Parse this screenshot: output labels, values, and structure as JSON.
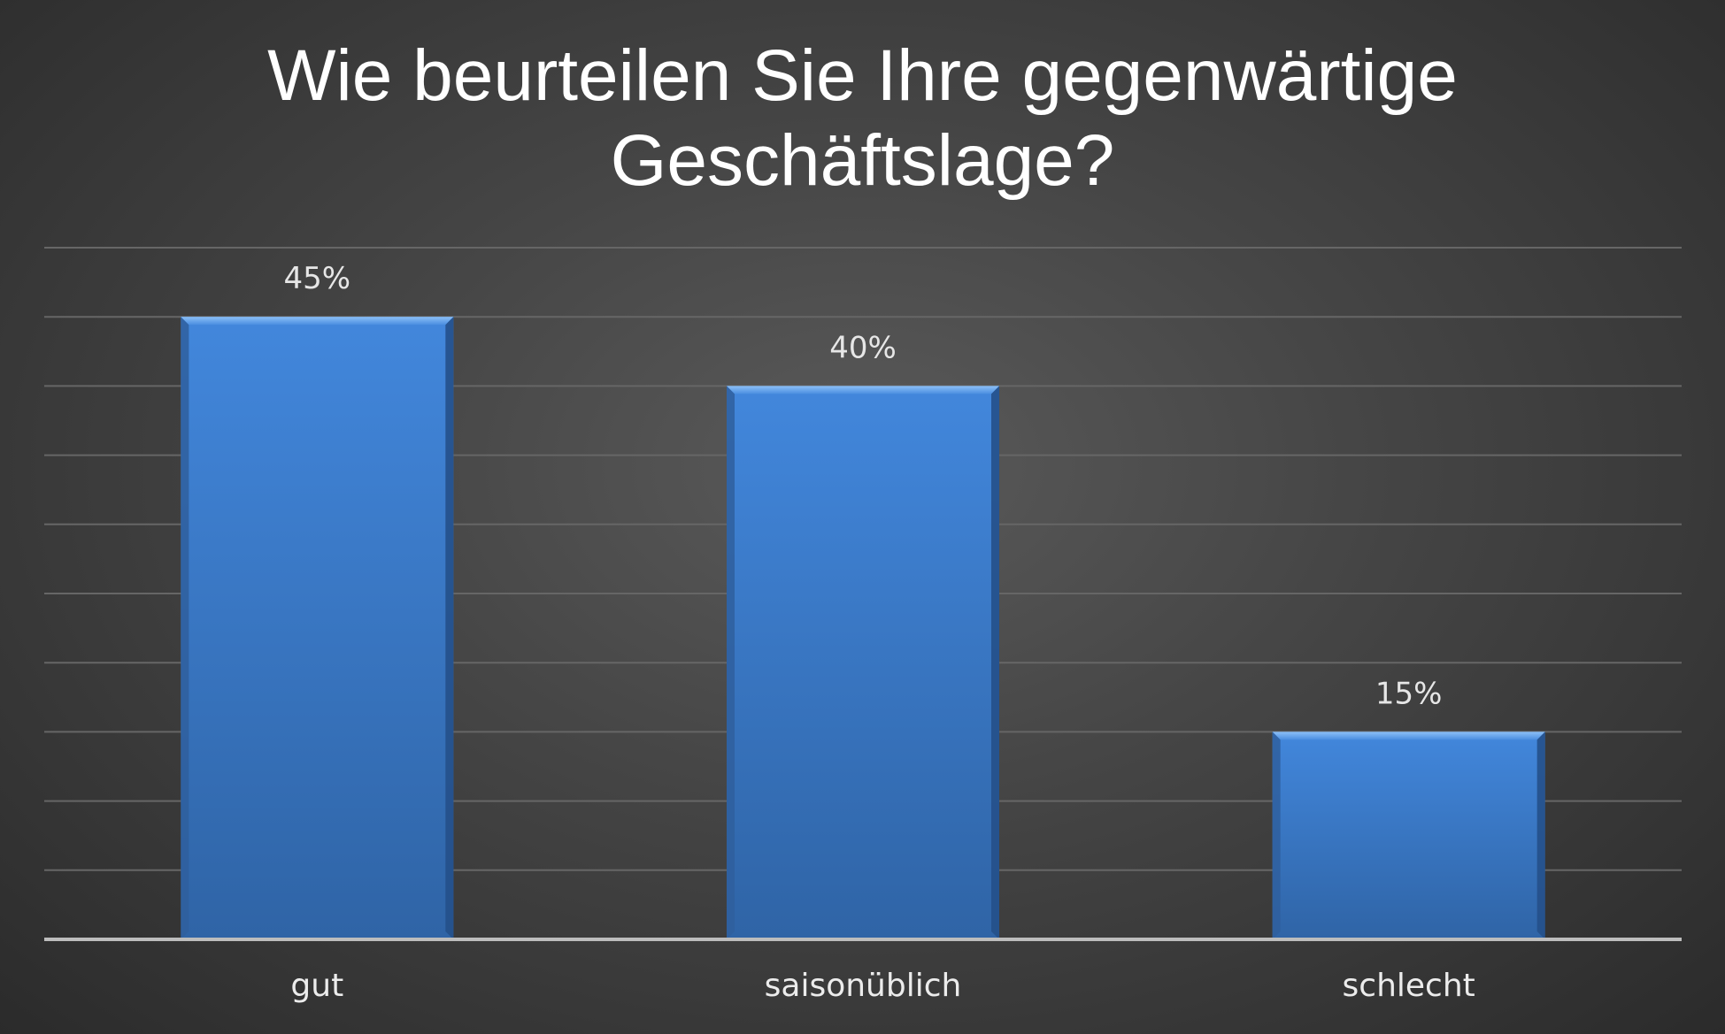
{
  "chart_data": {
    "type": "bar",
    "title_lines": [
      "Wie beurteilen Sie Ihre gegenwärtige",
      "Geschäftslage?"
    ],
    "categories": [
      "gut",
      "saisonüblich",
      "schlecht"
    ],
    "values": [
      45,
      40,
      15
    ],
    "data_labels": [
      "45%",
      "40%",
      "15%"
    ],
    "ylim": [
      0,
      50
    ],
    "ygrid_step": 5,
    "grid": true,
    "legend": "none",
    "xlabel": "",
    "ylabel": "",
    "bar_color": "#3f7fd1",
    "bar_color_dark": "#2f5f9e",
    "bar_color_light": "#6aa6f0",
    "gridline_color": "#666666",
    "axis_color": "#bdbdbd"
  }
}
